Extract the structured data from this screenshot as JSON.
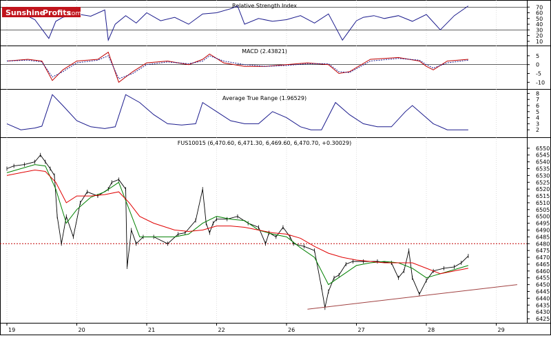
{
  "logo": {
    "part1": "Sunshine",
    "part2": "Profits",
    "suffix": ".com"
  },
  "colors": {
    "background": "#ffffff",
    "frame": "#000000",
    "grid": "#c8c8c8",
    "rsi_line": "#1a1a8c",
    "macd_line": "#c00000",
    "macd_signal": "#1a1a8c",
    "atr_line": "#1a1a8c",
    "price_bars": "#000000",
    "ma_short": "#008000",
    "ma_long": "#e00000",
    "support_line": "#a04040",
    "level_line": "#c00000",
    "logo_red": "#c0141c"
  },
  "chart_data": [
    {
      "type": "line",
      "title": "Relative Strength Index",
      "ylim": [
        5,
        80
      ],
      "yticks": [
        10,
        20,
        30,
        40,
        50,
        60,
        70
      ],
      "hlines": [
        30,
        70
      ],
      "grid": true,
      "series": [
        {
          "x": [
            0,
            0.2,
            0.4,
            0.6,
            0.7,
            0.8,
            1.0,
            1.2,
            1.4,
            1.45,
            1.55,
            1.7,
            1.85,
            2.0,
            2.2,
            2.4,
            2.6,
            2.8,
            3.0,
            3.2,
            3.3,
            3.4,
            3.6,
            3.8,
            4.0,
            4.2,
            4.4,
            4.6,
            4.8,
            5.0,
            5.1,
            5.25,
            5.4,
            5.6,
            5.8,
            6.0,
            6.2,
            6.4,
            6.6
          ],
          "values": [
            55,
            60,
            48,
            15,
            45,
            52,
            58,
            54,
            65,
            12,
            40,
            55,
            42,
            60,
            46,
            52,
            40,
            58,
            60,
            67,
            72,
            40,
            50,
            45,
            48,
            55,
            42,
            58,
            12,
            46,
            52,
            55,
            50,
            55,
            45,
            57,
            30,
            55,
            72
          ]
        }
      ]
    },
    {
      "type": "line",
      "title": "MACD (2.43821)",
      "ylim": [
        -13,
        10
      ],
      "yticks": [
        -10,
        -5,
        0,
        5
      ],
      "hlines": [
        0
      ],
      "grid": true,
      "series": [
        {
          "values_x": [
            0,
            0.3,
            0.5,
            0.65,
            0.8,
            1.0,
            1.3,
            1.45,
            1.6,
            1.8,
            2.0,
            2.3,
            2.6,
            2.8,
            2.9,
            3.1,
            3.4,
            3.7,
            4.0,
            4.3,
            4.6,
            4.75,
            4.9,
            5.2,
            5.6,
            5.9,
            6.0,
            6.1,
            6.3,
            6.6
          ],
          "values": [
            2,
            3,
            2,
            -9,
            -3,
            2,
            3,
            7,
            -10,
            -4,
            1,
            2,
            0,
            3,
            6,
            1,
            -1,
            -1,
            0,
            1,
            0,
            -5,
            -4,
            3,
            4,
            2,
            -1,
            -3,
            2,
            3
          ]
        },
        {
          "values_x": [
            0,
            0.3,
            0.5,
            0.65,
            0.8,
            1.0,
            1.3,
            1.45,
            1.6,
            1.8,
            2.0,
            2.3,
            2.6,
            2.8,
            2.9,
            3.1,
            3.4,
            3.7,
            4.0,
            4.3,
            4.6,
            4.75,
            4.9,
            5.2,
            5.6,
            5.9,
            6.0,
            6.1,
            6.3,
            6.6
          ],
          "values": [
            2,
            2.5,
            1.5,
            -7,
            -4,
            1,
            2.5,
            5,
            -8,
            -5,
            0,
            1.5,
            0.5,
            2,
            5,
            2,
            0,
            -1,
            -0.5,
            0.5,
            0.5,
            -4,
            -4.5,
            2,
            3.5,
            2.5,
            0,
            -2,
            1,
            2.5
          ]
        }
      ]
    },
    {
      "type": "line",
      "title": "Average True Range (1.96529)",
      "ylim": [
        1,
        8.5
      ],
      "yticks": [
        2,
        3,
        4,
        5,
        6,
        7,
        8
      ],
      "grid": true,
      "series": [
        {
          "x": [
            0,
            0.2,
            0.4,
            0.5,
            0.65,
            0.8,
            1.0,
            1.2,
            1.4,
            1.55,
            1.7,
            1.9,
            2.1,
            2.3,
            2.5,
            2.7,
            2.8,
            3.0,
            3.2,
            3.4,
            3.6,
            3.8,
            4.0,
            4.2,
            4.35,
            4.5,
            4.7,
            4.9,
            5.1,
            5.3,
            5.5,
            5.7,
            5.8,
            6.0,
            6.1,
            6.3,
            6.6
          ],
          "values": [
            3,
            2,
            2.3,
            2.6,
            7.8,
            6,
            3.5,
            2.5,
            2.2,
            2.5,
            7.8,
            6.5,
            4.5,
            3,
            2.8,
            3,
            6.5,
            5,
            3.5,
            3,
            3,
            5,
            4,
            2.5,
            2,
            2,
            6.5,
            4.5,
            3,
            2.5,
            2.5,
            5,
            6,
            4,
            3,
            2,
            2
          ]
        }
      ]
    },
    {
      "type": "line",
      "title": "FUS10015 (6,470.60, 6,471.30, 6,469.60, 6,470.70, +0.30029)",
      "ylim": [
        6423,
        6557
      ],
      "yticks": [
        6425,
        6430,
        6435,
        6440,
        6445,
        6450,
        6455,
        6460,
        6465,
        6470,
        6475,
        6480,
        6485,
        6490,
        6495,
        6500,
        6505,
        6510,
        6515,
        6520,
        6525,
        6530,
        6535,
        6540,
        6545,
        6550
      ],
      "x_tick_labels": [
        "19",
        "20",
        "21",
        "22",
        "26",
        "27",
        "28",
        "29"
      ],
      "x_tick_positions": [
        0,
        1,
        2,
        3,
        4,
        5,
        6,
        7
      ],
      "hlines": [
        {
          "value": 6480,
          "style": "dotted"
        }
      ],
      "trendlines": [
        {
          "from": [
            4.3,
            6432
          ],
          "to": [
            7.3,
            6450
          ]
        }
      ],
      "grid": true,
      "series": [
        {
          "name": "price",
          "x": [
            0,
            0.1,
            0.25,
            0.4,
            0.48,
            0.55,
            0.62,
            0.68,
            0.72,
            0.78,
            0.85,
            0.95,
            1.05,
            1.15,
            1.3,
            1.45,
            1.5,
            1.6,
            1.7,
            1.72,
            1.78,
            1.85,
            1.95,
            2.1,
            2.3,
            2.45,
            2.55,
            2.7,
            2.8,
            2.85,
            2.9,
            2.95,
            3.0,
            3.15,
            3.3,
            3.45,
            3.6,
            3.7,
            3.75,
            3.85,
            3.95,
            4.05,
            4.1,
            4.25,
            4.4,
            4.5,
            4.55,
            4.6,
            4.68,
            4.75,
            4.85,
            4.95,
            5.1,
            5.3,
            5.5,
            5.6,
            5.68,
            5.75,
            5.8,
            5.9,
            6.0,
            6.1,
            6.25,
            6.4,
            6.5,
            6.6
          ],
          "values": [
            6535,
            6537,
            6538,
            6540,
            6545,
            6540,
            6535,
            6530,
            6500,
            6480,
            6500,
            6485,
            6510,
            6518,
            6515,
            6520,
            6525,
            6527,
            6520,
            6463,
            6490,
            6480,
            6485,
            6485,
            6480,
            6487,
            6488,
            6497,
            6520,
            6495,
            6488,
            6495,
            6498,
            6498,
            6500,
            6495,
            6492,
            6480,
            6488,
            6485,
            6492,
            6485,
            6480,
            6478,
            6475,
            6448,
            6433,
            6445,
            6455,
            6457,
            6465,
            6467,
            6467,
            6467,
            6466,
            6455,
            6460,
            6475,
            6455,
            6443,
            6453,
            6460,
            6462,
            6463,
            6466,
            6471
          ]
        },
        {
          "name": "MA short",
          "x": [
            0,
            0.2,
            0.4,
            0.55,
            0.7,
            0.85,
            1.0,
            1.2,
            1.4,
            1.6,
            1.75,
            1.9,
            2.1,
            2.4,
            2.6,
            2.8,
            3.0,
            3.2,
            3.4,
            3.6,
            3.8,
            4.0,
            4.2,
            4.4,
            4.6,
            4.8,
            5.0,
            5.2,
            5.4,
            5.6,
            5.8,
            6.0,
            6.2,
            6.4,
            6.6
          ],
          "values": [
            6532,
            6535,
            6538,
            6537,
            6520,
            6495,
            6505,
            6514,
            6518,
            6525,
            6505,
            6485,
            6485,
            6485,
            6487,
            6495,
            6500,
            6498,
            6497,
            6490,
            6487,
            6485,
            6477,
            6470,
            6450,
            6457,
            6464,
            6466,
            6467,
            6466,
            6462,
            6455,
            6458,
            6461,
            6464
          ]
        },
        {
          "name": "MA long",
          "x": [
            0,
            0.2,
            0.4,
            0.55,
            0.7,
            0.85,
            1.0,
            1.2,
            1.4,
            1.6,
            1.75,
            1.9,
            2.1,
            2.4,
            2.6,
            2.8,
            3.0,
            3.2,
            3.4,
            3.6,
            3.8,
            4.0,
            4.2,
            4.4,
            4.6,
            4.8,
            5.0,
            5.2,
            5.4,
            5.6,
            5.8,
            6.0,
            6.2,
            6.4,
            6.6
          ],
          "values": [
            6530,
            6532,
            6534,
            6533,
            6525,
            6510,
            6515,
            6515,
            6516,
            6518,
            6510,
            6500,
            6495,
            6490,
            6489,
            6490,
            6493,
            6493,
            6492,
            6490,
            6488,
            6487,
            6484,
            6478,
            6473,
            6470,
            6468,
            6467,
            6466,
            6466,
            6466,
            6462,
            6458,
            6460,
            6462
          ]
        }
      ]
    }
  ]
}
